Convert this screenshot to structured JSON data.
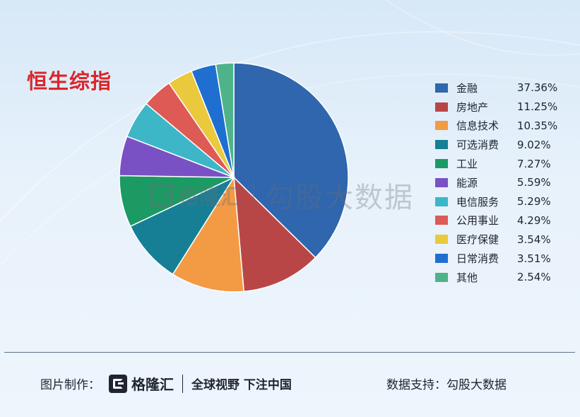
{
  "title": "恒生综指",
  "watermark": {
    "brand": "格隆汇",
    "text": "勾股大数据"
  },
  "legend_values": [
    "37.36%",
    "11.25%",
    "10.35%",
    "9.02%",
    "7.27%",
    "5.59%",
    "5.29%",
    "4.29%",
    "3.54%",
    "3.51%",
    "2.54%"
  ],
  "chart_data": {
    "type": "pie",
    "title": "恒生综指",
    "categories": [
      "金融",
      "房地产",
      "信息技术",
      "可选消费",
      "工业",
      "能源",
      "电信服务",
      "公用事业",
      "医疗保健",
      "日常消费",
      "其他"
    ],
    "values": [
      37.36,
      11.25,
      10.35,
      9.02,
      7.27,
      5.59,
      5.29,
      4.29,
      3.54,
      3.51,
      2.54
    ],
    "unit": "%",
    "colors": [
      "#2f66ad",
      "#b94646",
      "#f39a45",
      "#167f95",
      "#1c9a64",
      "#7a51c4",
      "#3db6c8",
      "#de5a55",
      "#eac93c",
      "#1f6fd1",
      "#4fb38a"
    ],
    "legend": "right",
    "start": "12 o'clock",
    "direction": "clockwise"
  },
  "footer": {
    "credit_label": "图片制作：",
    "brand_name": "格隆汇",
    "slogan": "全球视野 下注中国",
    "source_label": "数据支持：",
    "source_name": "勾股大数据"
  }
}
